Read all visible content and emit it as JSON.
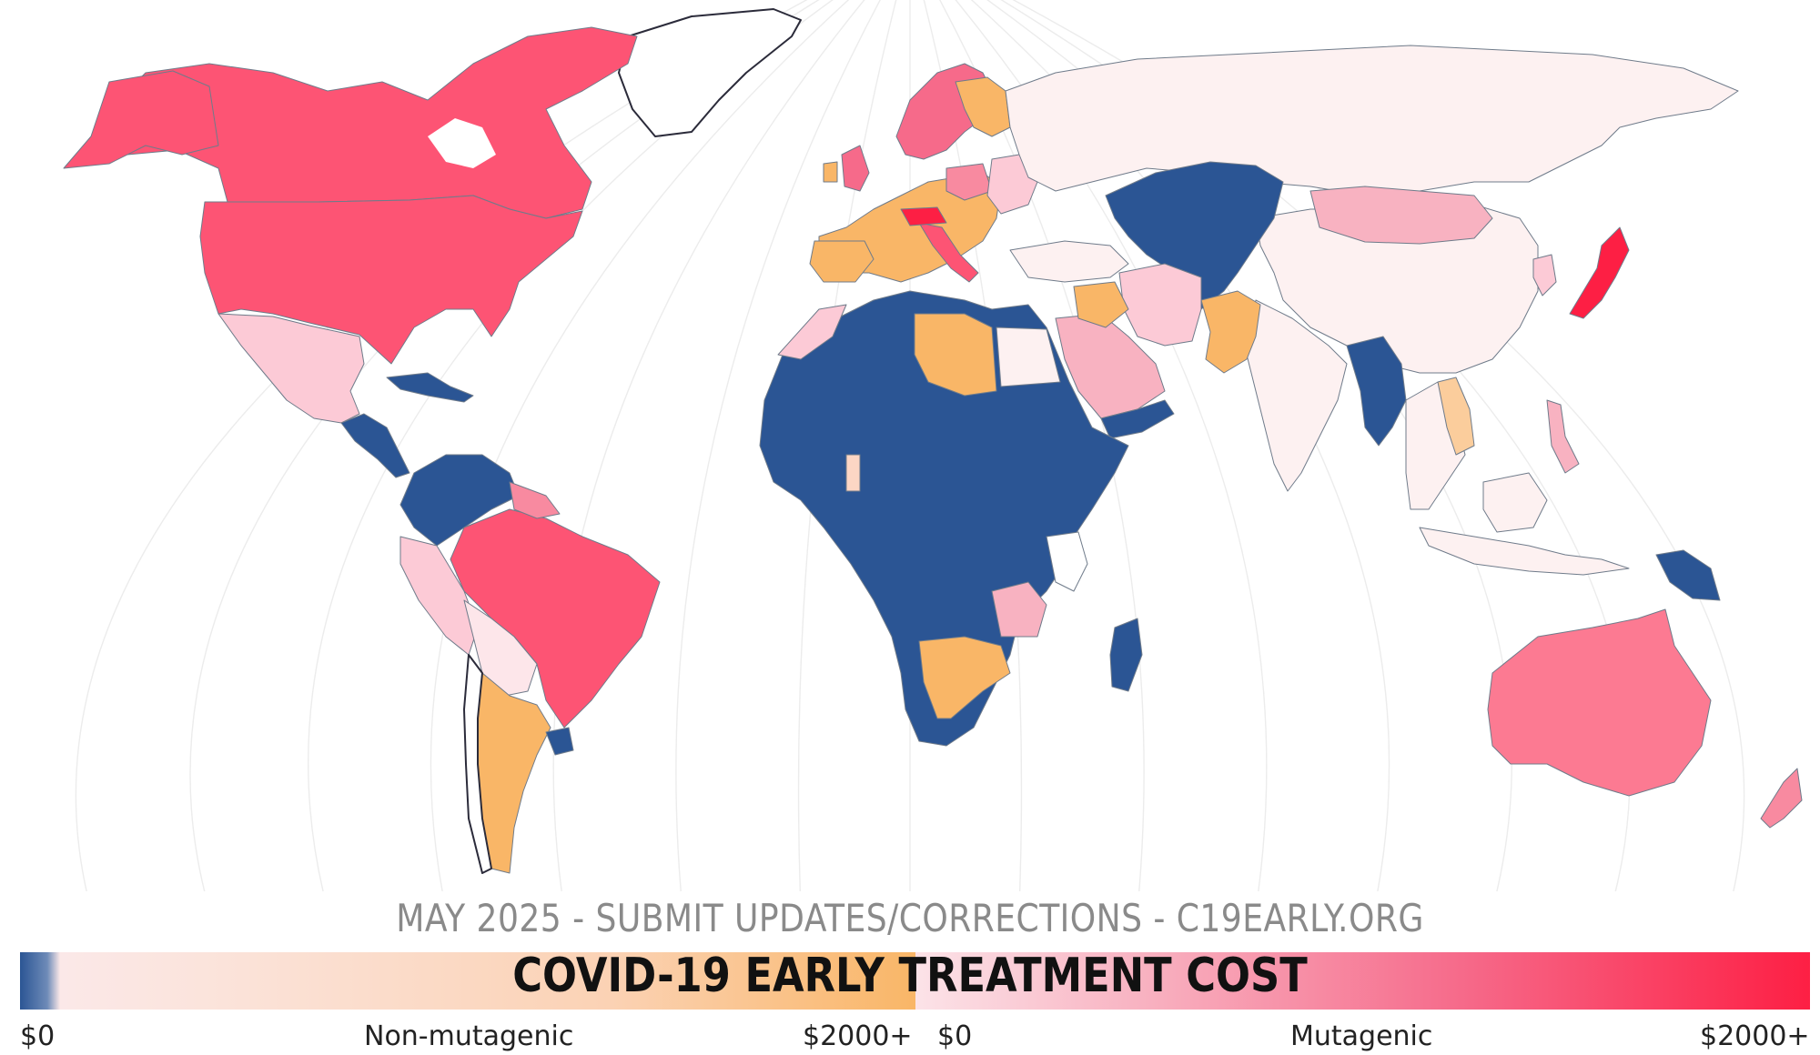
{
  "footer": "MAY 2025 - SUBMIT UPDATES/CORRECTIONS - C19EARLY.ORG",
  "legend": {
    "title": "COVID-19 EARLY TREATMENT COST",
    "left": {
      "min": "$0",
      "name": "Non-mutagenic",
      "max": "$2000+"
    },
    "right": {
      "min": "$0",
      "name": "Mutagenic",
      "max": "$2000+"
    }
  },
  "colors": {
    "low_nonmutagenic": "#2b5594",
    "mid_nonmutagenic": "#fcd6d6",
    "high_nonmutagenic": "#f9b667",
    "low_mutagenic": "#fde6ea",
    "mid_mutagenic": "#f88aa0",
    "high_mutagenic": "#fd1f44",
    "no_data": "#ffffff"
  },
  "regions": [
    {
      "name": "Canada / USA",
      "cost_class": "high-mutagenic"
    },
    {
      "name": "Mexico",
      "cost_class": "low-mutagenic"
    },
    {
      "name": "Central America",
      "cost_class": "low"
    },
    {
      "name": "Caribbean",
      "cost_class": "low"
    },
    {
      "name": "Venezuela / Colombia",
      "cost_class": "low"
    },
    {
      "name": "Brazil",
      "cost_class": "high-mutagenic"
    },
    {
      "name": "Argentina",
      "cost_class": "high-nonmutagenic"
    },
    {
      "name": "Peru / Bolivia",
      "cost_class": "low-mutagenic"
    },
    {
      "name": "Western Europe",
      "cost_class": "high-nonmutagenic"
    },
    {
      "name": "Nordics / UK",
      "cost_class": "high-mutagenic"
    },
    {
      "name": "Africa",
      "cost_class": "low"
    },
    {
      "name": "Libya",
      "cost_class": "high-nonmutagenic"
    },
    {
      "name": "Southern Africa",
      "cost_class": "high-nonmutagenic"
    },
    {
      "name": "Russia / China / India",
      "cost_class": "low-mutagenic"
    },
    {
      "name": "Central Asia",
      "cost_class": "low"
    },
    {
      "name": "Mongolia",
      "cost_class": "mid-mutagenic"
    },
    {
      "name": "Japan",
      "cost_class": "high-mutagenic"
    },
    {
      "name": "Australia",
      "cost_class": "mid-mutagenic"
    },
    {
      "name": "Papua New Guinea",
      "cost_class": "low"
    }
  ]
}
